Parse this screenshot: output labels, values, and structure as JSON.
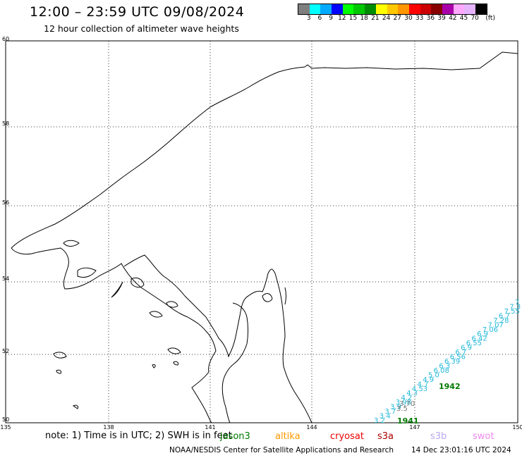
{
  "header": {
    "title": "12:00 – 23:59 UTC 09/08/2024",
    "subtitle": "12 hour collection of altimeter wave heights"
  },
  "legend": {
    "colors": [
      "#7f7f7f",
      "#00ffff",
      "#00aaff",
      "#0000ff",
      "#00ff00",
      "#00c800",
      "#008c00",
      "#ffff00",
      "#ffc800",
      "#ff9600",
      "#ff0000",
      "#cc0000",
      "#880000",
      "#aa00aa",
      "#ffaaff",
      "#e6b4ff",
      "#000000"
    ],
    "labels": [
      "3",
      "6",
      "9",
      "12",
      "15",
      "18",
      "21",
      "24",
      "27",
      "30",
      "33",
      "36",
      "39",
      "42",
      "45",
      "70"
    ],
    "unit": "(ft)"
  },
  "map": {
    "lat_labels": [
      "60",
      "58",
      "56",
      "54",
      "52",
      "50"
    ],
    "lon_labels": [
      "135",
      "138",
      "141",
      "144",
      "147",
      "150"
    ],
    "track": {
      "color": "#22b8d8",
      "values": [
        "3.2",
        "3.4",
        "3.7",
        "3.9",
        "3.98",
        "4.2",
        "4.3",
        "4.53",
        "4.7",
        "4.9",
        "5.0",
        "6.08",
        "6.3",
        "6.39",
        "6.56",
        "6.7",
        "6.9",
        "6.55",
        "6.42",
        "6.9",
        "7.06",
        "7.07",
        "7.28",
        "6.7",
        "7.55",
        "7.3",
        "7"
      ],
      "dark_values": [
        "3.5",
        "3.70"
      ],
      "pass_labels": [
        "1941",
        "1942"
      ]
    }
  },
  "footer": {
    "note": "note: 1) Time is in UTC; 2) SWH is in feet",
    "satellites": [
      {
        "name": "jason3",
        "color": "#007a00"
      },
      {
        "name": "altika",
        "color": "#ff9900"
      },
      {
        "name": "cryosat",
        "color": "#ee0000"
      },
      {
        "name": "s3a",
        "color": "#aa0000"
      },
      {
        "name": "s3b",
        "color": "#b9a7ee"
      },
      {
        "name": "swot",
        "color": "#ee88ee"
      }
    ],
    "credit": "NOAA/NESDIS Center for Satellite Applications and Research",
    "timestamp": "14 Dec 23:01:16 UTC 2024"
  }
}
